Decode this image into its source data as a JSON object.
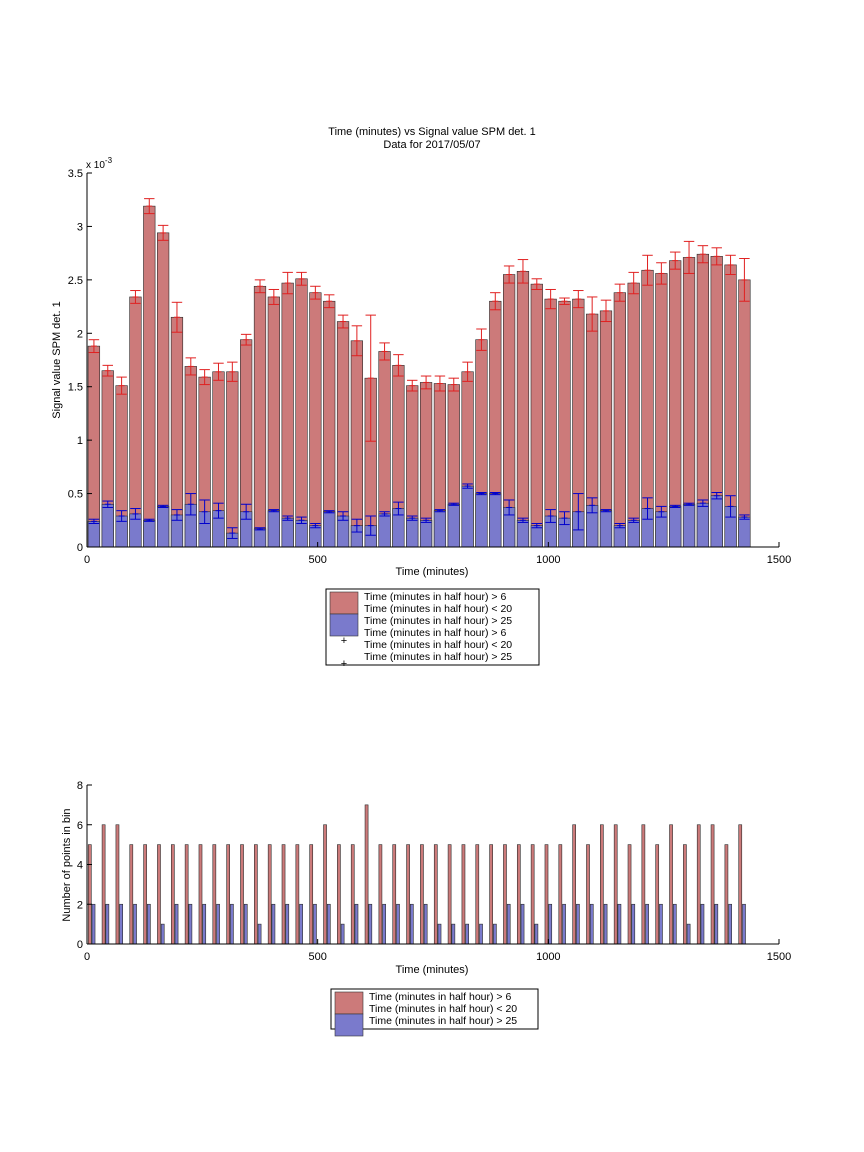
{
  "colors": {
    "series_a_fill": "#cc7a7a",
    "series_b_fill": "#7a7acc",
    "series_a_error": "#e02020",
    "series_b_error": "#0000cc",
    "axis": "#000000"
  },
  "chart_data": [
    {
      "type": "bar",
      "title": "Time (minutes) vs Signal value SPM det. 1",
      "subtitle": "Data for 2017/05/07",
      "xlabel": "Time (minutes)",
      "ylabel": "Signal value SPM det. 1",
      "y_exponent_label": "x 10",
      "y_exponent_power": "-3",
      "xlim": [
        0,
        1500
      ],
      "ylim": [
        0,
        3.5
      ],
      "y_scale_factor": 0.001,
      "xticks": [
        0,
        500,
        1000,
        1500
      ],
      "yticks": [
        0,
        0.5,
        1,
        1.5,
        2,
        2.5,
        3,
        3.5
      ],
      "grid": false,
      "legend_placement": "below",
      "legend": [
        "Time (minutes in half hour) > 6",
        "Time (minutes in half hour) < 20",
        "Time (minutes in half hour) > 25",
        "Time (minutes in half hour) > 6",
        "Time (minutes in half hour) < 20",
        "Time (minutes in half hour) > 25"
      ],
      "x": [
        15,
        45,
        75,
        105,
        135,
        165,
        195,
        225,
        255,
        285,
        315,
        345,
        375,
        405,
        435,
        465,
        495,
        525,
        555,
        585,
        615,
        645,
        675,
        705,
        735,
        765,
        795,
        825,
        855,
        885,
        915,
        945,
        975,
        1005,
        1035,
        1065,
        1095,
        1125,
        1155,
        1185,
        1215,
        1245,
        1275,
        1305,
        1335,
        1365,
        1395,
        1425
      ],
      "series": [
        {
          "name": "Time (minutes in half hour) > 6 Time (minutes in half hour) < 20",
          "values": [
            1.88,
            1.65,
            1.51,
            2.34,
            3.19,
            2.94,
            2.15,
            1.69,
            1.59,
            1.64,
            1.64,
            1.94,
            2.44,
            2.34,
            2.47,
            2.51,
            2.38,
            2.3,
            2.11,
            1.93,
            1.58,
            1.83,
            1.7,
            1.51,
            1.54,
            1.53,
            1.52,
            1.64,
            1.94,
            2.3,
            2.55,
            2.58,
            2.46,
            2.32,
            2.3,
            2.32,
            2.18,
            2.21,
            2.38,
            2.47,
            2.59,
            2.56,
            2.68,
            2.71,
            2.74,
            2.72,
            2.64,
            2.5
          ],
          "errors": [
            0.06,
            0.05,
            0.08,
            0.06,
            0.07,
            0.07,
            0.14,
            0.08,
            0.07,
            0.08,
            0.09,
            0.05,
            0.06,
            0.07,
            0.1,
            0.06,
            0.06,
            0.06,
            0.06,
            0.14,
            0.59,
            0.08,
            0.1,
            0.05,
            0.06,
            0.07,
            0.06,
            0.09,
            0.1,
            0.08,
            0.08,
            0.11,
            0.05,
            0.09,
            0.03,
            0.08,
            0.16,
            0.1,
            0.08,
            0.1,
            0.14,
            0.1,
            0.08,
            0.15,
            0.08,
            0.08,
            0.09,
            0.2
          ]
        },
        {
          "name": "Time (minutes in half hour) > 25",
          "values": [
            0.24,
            0.4,
            0.29,
            0.31,
            0.25,
            0.38,
            0.3,
            0.4,
            0.33,
            0.34,
            0.13,
            0.33,
            0.17,
            0.34,
            0.27,
            0.25,
            0.2,
            0.33,
            0.29,
            0.2,
            0.2,
            0.31,
            0.36,
            0.27,
            0.25,
            0.34,
            0.4,
            0.57,
            0.5,
            0.5,
            0.37,
            0.25,
            0.2,
            0.29,
            0.27,
            0.33,
            0.39,
            0.34,
            0.2,
            0.25,
            0.36,
            0.33,
            0.38,
            0.4,
            0.41,
            0.48,
            0.38,
            0.28
          ],
          "errors": [
            0.02,
            0.03,
            0.05,
            0.05,
            0.01,
            0.01,
            0.05,
            0.1,
            0.11,
            0.07,
            0.05,
            0.07,
            0.01,
            0.01,
            0.02,
            0.03,
            0.02,
            0.01,
            0.04,
            0.06,
            0.09,
            0.02,
            0.06,
            0.02,
            0.02,
            0.01,
            0.01,
            0.02,
            0.01,
            0.01,
            0.07,
            0.02,
            0.02,
            0.06,
            0.06,
            0.17,
            0.07,
            0.01,
            0.02,
            0.02,
            0.1,
            0.05,
            0.01,
            0.01,
            0.03,
            0.03,
            0.1,
            0.02
          ]
        }
      ]
    },
    {
      "type": "bar",
      "xlabel": "Time (minutes)",
      "ylabel": "Number of points in bin",
      "xlim": [
        0,
        1500
      ],
      "ylim": [
        0,
        8
      ],
      "xticks": [
        0,
        500,
        1000,
        1500
      ],
      "yticks": [
        0,
        2,
        4,
        6,
        8
      ],
      "grid": false,
      "legend_placement": "below",
      "legend": [
        "Time (minutes in half hour) > 6",
        "Time (minutes in half hour) < 20",
        "Time (minutes in half hour) > 25"
      ],
      "x": [
        15,
        45,
        75,
        105,
        135,
        165,
        195,
        225,
        255,
        285,
        315,
        345,
        375,
        405,
        435,
        465,
        495,
        525,
        555,
        585,
        615,
        645,
        675,
        705,
        735,
        765,
        795,
        825,
        855,
        885,
        915,
        945,
        975,
        1005,
        1035,
        1065,
        1095,
        1125,
        1155,
        1185,
        1215,
        1245,
        1275,
        1305,
        1335,
        1365,
        1395,
        1425
      ],
      "series": [
        {
          "name": "Time (minutes in half hour) > 6 Time (minutes in half hour) < 20",
          "values": [
            5,
            6,
            6,
            5,
            5,
            5,
            5,
            5,
            5,
            5,
            5,
            5,
            5,
            5,
            5,
            5,
            5,
            6,
            5,
            5,
            7,
            5,
            5,
            5,
            5,
            5,
            5,
            5,
            5,
            5,
            5,
            5,
            5,
            5,
            5,
            6,
            5,
            6,
            6,
            5,
            6,
            5,
            6,
            5,
            6,
            6,
            5,
            6
          ]
        },
        {
          "name": "Time (minutes in half hour) > 25",
          "values": [
            2,
            2,
            2,
            2,
            2,
            1,
            2,
            2,
            2,
            2,
            2,
            2,
            1,
            2,
            2,
            2,
            2,
            2,
            1,
            2,
            2,
            2,
            2,
            2,
            2,
            1,
            1,
            1,
            1,
            1,
            2,
            2,
            1,
            2,
            2,
            2,
            2,
            2,
            2,
            2,
            2,
            2,
            2,
            1,
            2,
            2,
            2,
            2
          ]
        }
      ]
    }
  ]
}
